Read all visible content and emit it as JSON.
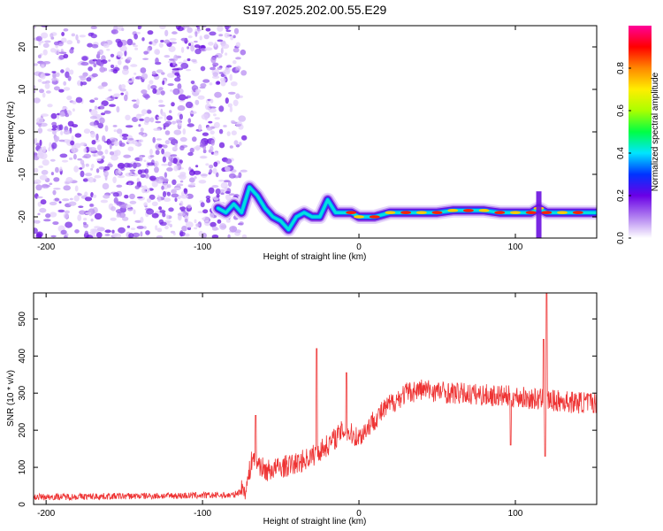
{
  "title": "S197.2025.202.00.55.E29",
  "chart_data": [
    {
      "type": "heatmap",
      "xlabel": "Height of straight line (km)",
      "ylabel": "Frequency (Hz)",
      "xlim": [
        -208,
        152
      ],
      "ylim": [
        -25,
        25
      ],
      "xticks": [
        -200,
        -100,
        0,
        100
      ],
      "yticks": [
        -20,
        -10,
        0,
        10,
        20
      ],
      "colorbar": {
        "label": "Normalized spectral amplitude",
        "range": [
          0,
          1
        ],
        "ticks": [
          "0.0",
          "0.2",
          "0.4",
          "0.6",
          "0.8"
        ],
        "colors": [
          "#ffffff",
          "#b07ff0",
          "#6a00e6",
          "#0033ff",
          "#00e5ff",
          "#00ff44",
          "#aaff00",
          "#ffee00",
          "#ff8800",
          "#ff0000",
          "#ff0099"
        ]
      },
      "noise_region_x": [
        -208,
        -80
      ],
      "ridge": [
        {
          "x": -90,
          "y": -18
        },
        {
          "x": -85,
          "y": -19
        },
        {
          "x": -80,
          "y": -17
        },
        {
          "x": -75,
          "y": -19
        },
        {
          "x": -70,
          "y": -13
        },
        {
          "x": -65,
          "y": -15
        },
        {
          "x": -60,
          "y": -18
        },
        {
          "x": -55,
          "y": -20
        },
        {
          "x": -50,
          "y": -21
        },
        {
          "x": -45,
          "y": -23
        },
        {
          "x": -40,
          "y": -20
        },
        {
          "x": -35,
          "y": -19
        },
        {
          "x": -30,
          "y": -20
        },
        {
          "x": -25,
          "y": -20
        },
        {
          "x": -20,
          "y": -16
        },
        {
          "x": -15,
          "y": -19
        },
        {
          "x": -10,
          "y": -19
        },
        {
          "x": -5,
          "y": -19
        },
        {
          "x": 0,
          "y": -20
        },
        {
          "x": 10,
          "y": -20
        },
        {
          "x": 20,
          "y": -19
        },
        {
          "x": 30,
          "y": -19
        },
        {
          "x": 40,
          "y": -19
        },
        {
          "x": 50,
          "y": -19
        },
        {
          "x": 60,
          "y": -18.5
        },
        {
          "x": 70,
          "y": -18.5
        },
        {
          "x": 80,
          "y": -18.5
        },
        {
          "x": 90,
          "y": -19
        },
        {
          "x": 100,
          "y": -19
        },
        {
          "x": 110,
          "y": -19
        },
        {
          "x": 115,
          "y": -18
        },
        {
          "x": 120,
          "y": -19
        },
        {
          "x": 130,
          "y": -19
        },
        {
          "x": 140,
          "y": -19
        },
        {
          "x": 152,
          "y": -19
        }
      ]
    },
    {
      "type": "line",
      "xlabel": "Height of straight line (km)",
      "ylabel": "SNR (10 * v/v)",
      "xlim": [
        -208,
        152
      ],
      "ylim": [
        0,
        570
      ],
      "xticks": [
        -200,
        -100,
        0,
        100
      ],
      "yticks": [
        0,
        100,
        200,
        300,
        400,
        500
      ],
      "color": "#ee3333",
      "trend": [
        {
          "x": -208,
          "y": 20
        },
        {
          "x": -80,
          "y": 25
        },
        {
          "x": -72,
          "y": 45
        },
        {
          "x": -68,
          "y": 130
        },
        {
          "x": -60,
          "y": 90
        },
        {
          "x": -40,
          "y": 110
        },
        {
          "x": -30,
          "y": 130
        },
        {
          "x": -20,
          "y": 160
        },
        {
          "x": -10,
          "y": 200
        },
        {
          "x": 0,
          "y": 180
        },
        {
          "x": 10,
          "y": 230
        },
        {
          "x": 20,
          "y": 270
        },
        {
          "x": 30,
          "y": 300
        },
        {
          "x": 40,
          "y": 310
        },
        {
          "x": 60,
          "y": 300
        },
        {
          "x": 80,
          "y": 295
        },
        {
          "x": 100,
          "y": 290
        },
        {
          "x": 120,
          "y": 280
        },
        {
          "x": 140,
          "y": 275
        },
        {
          "x": 152,
          "y": 275
        }
      ],
      "spikes": [
        {
          "x": -66,
          "y": 240
        },
        {
          "x": -27,
          "y": 420
        },
        {
          "x": -8,
          "y": 355
        },
        {
          "x": 97,
          "y": 160
        },
        {
          "x": 118,
          "y": 445
        },
        {
          "x": 120,
          "y": 570
        },
        {
          "x": 119,
          "y": 130
        }
      ]
    }
  ]
}
